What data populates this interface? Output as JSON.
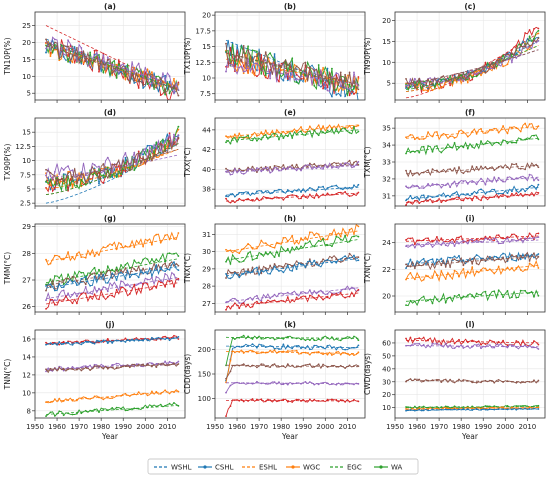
{
  "figure": {
    "x_label": "Year",
    "x_ticks": [
      1950,
      1960,
      1970,
      1980,
      1990,
      2000,
      2010
    ],
    "legend": [
      {
        "name": "WSHL",
        "color": "#1f77b4",
        "style": "dashed"
      },
      {
        "name": "CSHL",
        "color": "#1f77b4",
        "style": "solid-marker"
      },
      {
        "name": "ESHL",
        "color": "#ff7f0e",
        "style": "dashed"
      },
      {
        "name": "WGC",
        "color": "#ff7f0e",
        "style": "solid-marker"
      },
      {
        "name": "EGC",
        "color": "#2ca02c",
        "style": "dashed"
      },
      {
        "name": "WA",
        "color": "#2ca02c",
        "style": "solid-marker"
      }
    ],
    "region_colors": {
      "WSHL": "#1f77b4",
      "CSHL": "#1f77b4",
      "ESHL": "#ff7f0e",
      "WGC": "#ff7f0e",
      "EGC": "#2ca02c",
      "WA": "#2ca02c",
      "red": "#d62728",
      "purple": "#9467bd",
      "brown": "#8c564b"
    }
  },
  "chart_data": [
    {
      "id": "a",
      "label": "(a)",
      "type": "line",
      "ylabel": "TN10P(%)",
      "ylim": [
        3,
        29
      ],
      "yticks": [
        5,
        10,
        15,
        20,
        25
      ],
      "x": [
        1955,
        2015
      ],
      "series": [
        {
          "color": "#d62728",
          "start": 20,
          "end": 5,
          "noise": 3.5,
          "trend": [
            25,
            6
          ]
        },
        {
          "color": "#1f77b4",
          "start": 19,
          "end": 6,
          "noise": 3,
          "trend": [
            21,
            6
          ]
        },
        {
          "color": "#ff7f0e",
          "start": 18,
          "end": 7,
          "noise": 2.5,
          "trend": [
            19,
            7
          ]
        },
        {
          "color": "#2ca02c",
          "start": 19,
          "end": 6,
          "noise": 2.8,
          "trend": [
            20,
            6
          ]
        },
        {
          "color": "#9467bd",
          "start": 20,
          "end": 7,
          "noise": 3,
          "trend": [
            20,
            7
          ]
        },
        {
          "color": "#8c564b",
          "start": 19,
          "end": 6,
          "noise": 2.5,
          "trend": [
            19,
            6
          ]
        }
      ]
    },
    {
      "id": "b",
      "label": "(b)",
      "type": "line",
      "ylabel": "TX10P(%)",
      "ylim": [
        6.5,
        20.5
      ],
      "yticks": [
        7.5,
        10.0,
        12.5,
        15.0,
        17.5,
        20.0
      ],
      "x": [
        1955,
        2015
      ],
      "series": [
        {
          "color": "#1f77b4",
          "start": 14,
          "end": 8,
          "noise": 2.2,
          "trend": [
            16,
            7.5
          ]
        },
        {
          "color": "#d62728",
          "start": 13,
          "end": 8.5,
          "noise": 2,
          "trend": [
            14,
            8.5
          ]
        },
        {
          "color": "#ff7f0e",
          "start": 13,
          "end": 9,
          "noise": 1.8,
          "trend": [
            13,
            9
          ]
        },
        {
          "color": "#2ca02c",
          "start": 14,
          "end": 8.5,
          "noise": 2,
          "trend": [
            14,
            8.5
          ]
        },
        {
          "color": "#9467bd",
          "start": 12,
          "end": 9,
          "noise": 1.8,
          "trend": [
            12,
            9
          ]
        },
        {
          "color": "#8c564b",
          "start": 14,
          "end": 9,
          "noise": 1.8,
          "trend": [
            14,
            9
          ]
        }
      ]
    },
    {
      "id": "c",
      "label": "(c)",
      "type": "line",
      "ylabel": "TN90P(%)",
      "ylim": [
        1,
        22
      ],
      "yticks": [
        5,
        10,
        15,
        20
      ],
      "x": [
        1955,
        2015
      ],
      "series": [
        {
          "color": "#d62728",
          "start": 4,
          "end": 19,
          "noise": 1.5,
          "trend": [
            1.5,
            17
          ],
          "curve": 2.2
        },
        {
          "color": "#1f77b4",
          "start": 4.5,
          "end": 17,
          "noise": 1.2,
          "trend": [
            3,
            15
          ],
          "curve": 2.2
        },
        {
          "color": "#ff7f0e",
          "start": 4,
          "end": 16,
          "noise": 1.2,
          "trend": [
            3,
            14
          ],
          "curve": 2.2
        },
        {
          "color": "#2ca02c",
          "start": 4.5,
          "end": 17,
          "noise": 1.2,
          "trend": [
            3.5,
            14
          ],
          "curve": 2.2
        },
        {
          "color": "#9467bd",
          "start": 5,
          "end": 15,
          "noise": 1.2,
          "trend": [
            5,
            13
          ],
          "curve": 2.2
        },
        {
          "color": "#8c564b",
          "start": 5,
          "end": 16,
          "noise": 1.2,
          "trend": [
            5,
            13
          ],
          "curve": 2.2
        }
      ]
    },
    {
      "id": "d",
      "label": "(d)",
      "type": "line",
      "ylabel": "TX90P(%)",
      "ylim": [
        2,
        17.5
      ],
      "yticks": [
        2.5,
        5.0,
        7.5,
        10.0,
        12.5,
        15.0
      ],
      "x": [
        1955,
        2015
      ],
      "series": [
        {
          "color": "#1f77b4",
          "start": 6,
          "end": 15,
          "noise": 1.6,
          "trend": [
            2.5,
            13
          ],
          "curve": 2.2
        },
        {
          "color": "#d62728",
          "start": 6,
          "end": 15,
          "noise": 1.6,
          "trend": [
            4,
            13
          ],
          "curve": 2.2
        },
        {
          "color": "#ff7f0e",
          "start": 6.5,
          "end": 14,
          "noise": 1.5,
          "trend": [
            5,
            12
          ],
          "curve": 2.2
        },
        {
          "color": "#2ca02c",
          "start": 6,
          "end": 15,
          "noise": 1.5,
          "trend": [
            4,
            13
          ],
          "curve": 2.2
        },
        {
          "color": "#9467bd",
          "start": 8,
          "end": 14,
          "noise": 1.5,
          "trend": [
            7,
            11
          ],
          "curve": 2.2
        },
        {
          "color": "#8c564b",
          "start": 7,
          "end": 14,
          "noise": 1.5,
          "trend": [
            6.5,
            12
          ],
          "curve": 2.2
        }
      ]
    },
    {
      "id": "e",
      "label": "(e)",
      "type": "line",
      "ylabel": "TXX(°C)",
      "ylim": [
        36.3,
        45.2
      ],
      "yticks": [
        38,
        40,
        42,
        44
      ],
      "x": [
        1955,
        2015
      ],
      "series": [
        {
          "color": "#ff7f0e",
          "start": 43.3,
          "end": 44.5,
          "noise": 0.35,
          "trend": [
            43.3,
            44.5
          ]
        },
        {
          "color": "#2ca02c",
          "start": 42.9,
          "end": 44.0,
          "noise": 0.35,
          "trend": [
            42.9,
            44.0
          ]
        },
        {
          "color": "#8c564b",
          "start": 39.8,
          "end": 40.7,
          "noise": 0.3,
          "trend": [
            39.8,
            40.5
          ]
        },
        {
          "color": "#9467bd",
          "start": 39.7,
          "end": 40.5,
          "noise": 0.3,
          "trend": [
            39.7,
            40.4
          ]
        },
        {
          "color": "#1f77b4",
          "start": 37.4,
          "end": 38.3,
          "noise": 0.25,
          "trend": [
            37.4,
            38.2
          ]
        },
        {
          "color": "#d62728",
          "start": 36.8,
          "end": 37.6,
          "noise": 0.25,
          "trend": [
            36.8,
            37.6
          ]
        }
      ]
    },
    {
      "id": "f",
      "label": "(f)",
      "type": "line",
      "ylabel": "TXM(°C)",
      "ylim": [
        30.4,
        35.6
      ],
      "yticks": [
        31,
        32,
        33,
        34,
        35
      ],
      "x": [
        1955,
        2015
      ],
      "series": [
        {
          "color": "#ff7f0e",
          "start": 34.4,
          "end": 35.1,
          "noise": 0.25,
          "trend": [
            34.4,
            35.1
          ]
        },
        {
          "color": "#2ca02c",
          "start": 33.6,
          "end": 34.4,
          "noise": 0.25,
          "trend": [
            33.6,
            34.4
          ]
        },
        {
          "color": "#8c564b",
          "start": 32.3,
          "end": 32.8,
          "noise": 0.2,
          "trend": [
            32.3,
            32.8
          ]
        },
        {
          "color": "#9467bd",
          "start": 31.5,
          "end": 32.1,
          "noise": 0.2,
          "trend": [
            31.5,
            32.1
          ]
        },
        {
          "color": "#1f77b4",
          "start": 30.8,
          "end": 31.5,
          "noise": 0.2,
          "trend": [
            30.8,
            31.5
          ]
        },
        {
          "color": "#d62728",
          "start": 30.6,
          "end": 31.1,
          "noise": 0.15,
          "trend": [
            30.6,
            31.1
          ]
        }
      ]
    },
    {
      "id": "g",
      "label": "(g)",
      "type": "line",
      "ylabel": "TMM(°C)",
      "ylim": [
        25.8,
        29.1
      ],
      "yticks": [
        26,
        27,
        28,
        29
      ],
      "x": [
        1955,
        2015
      ],
      "series": [
        {
          "color": "#ff7f0e",
          "start": 27.7,
          "end": 28.7,
          "noise": 0.2,
          "trend": [
            27.7,
            28.6
          ]
        },
        {
          "color": "#2ca02c",
          "start": 26.9,
          "end": 27.9,
          "noise": 0.2,
          "trend": [
            26.9,
            27.8
          ]
        },
        {
          "color": "#8c564b",
          "start": 26.8,
          "end": 27.6,
          "noise": 0.2,
          "trend": [
            26.8,
            27.6
          ]
        },
        {
          "color": "#1f77b4",
          "start": 26.7,
          "end": 27.5,
          "noise": 0.2,
          "trend": [
            26.7,
            27.5
          ]
        },
        {
          "color": "#9467bd",
          "start": 26.3,
          "end": 27.2,
          "noise": 0.2,
          "trend": [
            26.3,
            27.1
          ]
        },
        {
          "color": "#d62728",
          "start": 26.1,
          "end": 26.9,
          "noise": 0.2,
          "trend": [
            26.1,
            26.9
          ]
        }
      ]
    },
    {
      "id": "h",
      "label": "(h)",
      "type": "line",
      "ylabel": "TNX(°C)",
      "ylim": [
        26.5,
        31.6
      ],
      "yticks": [
        27,
        28,
        29,
        30,
        31
      ],
      "x": [
        1955,
        2015
      ],
      "series": [
        {
          "color": "#ff7f0e",
          "start": 30.0,
          "end": 31.3,
          "noise": 0.3,
          "trend": [
            30.0,
            31.2
          ]
        },
        {
          "color": "#2ca02c",
          "start": 29.5,
          "end": 30.8,
          "noise": 0.3,
          "trend": [
            29.5,
            30.7
          ]
        },
        {
          "color": "#8c564b",
          "start": 28.7,
          "end": 29.7,
          "noise": 0.25,
          "trend": [
            28.7,
            29.7
          ]
        },
        {
          "color": "#1f77b4",
          "start": 28.6,
          "end": 29.6,
          "noise": 0.25,
          "trend": [
            28.6,
            29.6
          ]
        },
        {
          "color": "#9467bd",
          "start": 27.1,
          "end": 27.9,
          "noise": 0.2,
          "trend": [
            27.1,
            27.9
          ]
        },
        {
          "color": "#d62728",
          "start": 26.8,
          "end": 27.6,
          "noise": 0.2,
          "trend": [
            26.8,
            27.6
          ]
        }
      ]
    },
    {
      "id": "i",
      "label": "(i)",
      "type": "line",
      "ylabel": "TXN(°C)",
      "ylim": [
        18.8,
        25.4
      ],
      "yticks": [
        20,
        22,
        24
      ],
      "x": [
        1955,
        2015
      ],
      "series": [
        {
          "color": "#d62728",
          "start": 24.1,
          "end": 24.5,
          "noise": 0.25,
          "trend": [
            24.1,
            24.5
          ]
        },
        {
          "color": "#9467bd",
          "start": 23.8,
          "end": 24.3,
          "noise": 0.25,
          "trend": [
            23.8,
            24.2
          ]
        },
        {
          "color": "#1f77b4",
          "start": 22.4,
          "end": 23.1,
          "noise": 0.35,
          "trend": [
            22.4,
            23.1
          ]
        },
        {
          "color": "#8c564b",
          "start": 22.2,
          "end": 23.0,
          "noise": 0.35,
          "trend": [
            22.2,
            23.0
          ]
        },
        {
          "color": "#ff7f0e",
          "start": 21.3,
          "end": 22.3,
          "noise": 0.4,
          "trend": [
            21.3,
            22.3
          ]
        },
        {
          "color": "#2ca02c",
          "start": 19.6,
          "end": 20.3,
          "noise": 0.35,
          "trend": [
            19.6,
            20.3
          ]
        }
      ]
    },
    {
      "id": "j",
      "label": "(j)",
      "type": "line",
      "ylabel": "TNN(°C)",
      "ylim": [
        7.2,
        17.0
      ],
      "yticks": [
        8,
        10,
        12,
        14,
        16
      ],
      "x": [
        1955,
        2015
      ],
      "series": [
        {
          "color": "#d62728",
          "start": 15.5,
          "end": 16.2,
          "noise": 0.2,
          "trend": [
            15.5,
            16.2
          ]
        },
        {
          "color": "#1f77b4",
          "start": 15.4,
          "end": 16.1,
          "noise": 0.2,
          "trend": [
            15.4,
            16.1
          ]
        },
        {
          "color": "#9467bd",
          "start": 12.6,
          "end": 13.4,
          "noise": 0.25,
          "trend": [
            12.6,
            13.4
          ]
        },
        {
          "color": "#8c564b",
          "start": 12.5,
          "end": 13.2,
          "noise": 0.25,
          "trend": [
            12.5,
            13.2
          ]
        },
        {
          "color": "#ff7f0e",
          "start": 9.0,
          "end": 10.2,
          "noise": 0.25,
          "trend": [
            9.0,
            10.2
          ]
        },
        {
          "color": "#2ca02c",
          "start": 7.6,
          "end": 8.7,
          "noise": 0.25,
          "trend": [
            7.6,
            8.6
          ]
        }
      ]
    },
    {
      "id": "k",
      "label": "(k)",
      "type": "line",
      "ylabel": "CDD(days)",
      "ylim": [
        60,
        240
      ],
      "yticks": [
        100,
        150,
        200
      ],
      "x": [
        1955,
        2015
      ],
      "series": [
        {
          "color": "#2ca02c",
          "start": 225,
          "end": 223,
          "noise": 5,
          "trend": [
            225,
            223
          ],
          "spike": 60
        },
        {
          "color": "#1f77b4",
          "start": 207,
          "end": 204,
          "noise": 5,
          "trend": [
            207,
            204
          ],
          "spike": 70
        },
        {
          "color": "#ff7f0e",
          "start": 196,
          "end": 192,
          "noise": 4,
          "trend": [
            196,
            192
          ],
          "spike": 60
        },
        {
          "color": "#8c564b",
          "start": 168,
          "end": 165,
          "noise": 4,
          "trend": [
            168,
            165
          ],
          "spike": 30
        },
        {
          "color": "#9467bd",
          "start": 132,
          "end": 130,
          "noise": 3,
          "trend": [
            132,
            130
          ],
          "spike": 20
        },
        {
          "color": "#d62728",
          "start": 96,
          "end": 95,
          "noise": 3,
          "trend": [
            96,
            95
          ],
          "spike": 30
        }
      ]
    },
    {
      "id": "l",
      "label": "(l)",
      "type": "line",
      "ylabel": "CWD(days)",
      "ylim": [
        2,
        70
      ],
      "yticks": [
        10,
        20,
        30,
        40,
        50,
        60
      ],
      "x": [
        1955,
        2015
      ],
      "series": [
        {
          "color": "#d62728",
          "start": 62,
          "end": 60,
          "noise": 2.5,
          "trend": [
            62,
            60
          ]
        },
        {
          "color": "#9467bd",
          "start": 58,
          "end": 57,
          "noise": 2,
          "trend": [
            58,
            57
          ]
        },
        {
          "color": "#8c564b",
          "start": 31,
          "end": 30,
          "noise": 1.2,
          "trend": [
            31,
            30
          ]
        },
        {
          "color": "#2ca02c",
          "start": 10,
          "end": 11,
          "noise": 0.8,
          "trend": [
            10,
            11
          ]
        },
        {
          "color": "#ff7f0e",
          "start": 9,
          "end": 10,
          "noise": 0.8,
          "trend": [
            9,
            10
          ]
        },
        {
          "color": "#1f77b4",
          "start": 8,
          "end": 9,
          "noise": 0.6,
          "trend": [
            8,
            9
          ]
        }
      ]
    }
  ]
}
